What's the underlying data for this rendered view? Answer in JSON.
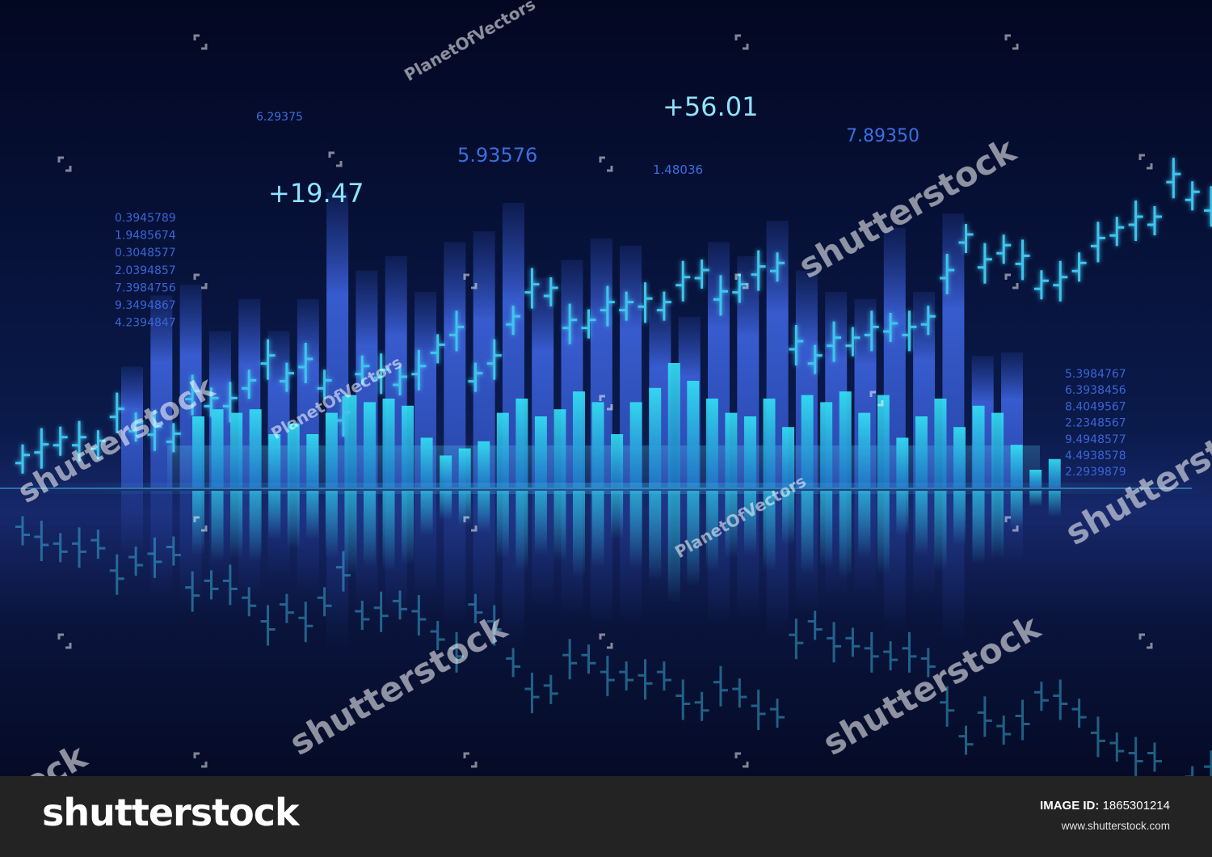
{
  "chart_data": {
    "type": "bar",
    "title": "",
    "xlabel": "",
    "ylabel": "",
    "grid": false,
    "legend": "none",
    "background_color": "#050a22",
    "series": [
      {
        "style": "tall-bars",
        "color": "#3a5fd6",
        "values": [
          34,
          54,
          57,
          44,
          53,
          44,
          53,
          83,
          61,
          65,
          55,
          69,
          72,
          80,
          59,
          64,
          70,
          68,
          52,
          48,
          69,
          65,
          75,
          61,
          55,
          53,
          73,
          55,
          77,
          37,
          38
        ]
      },
      {
        "style": "glow-bars",
        "color": "#2fd2ee",
        "values": [
          20,
          22,
          21,
          22,
          15,
          18,
          15,
          21,
          26,
          24,
          25,
          23,
          14,
          9,
          11,
          13,
          21,
          25,
          20,
          22,
          27,
          24,
          15,
          24,
          28,
          35,
          30,
          25,
          21,
          20,
          25,
          17,
          26,
          24,
          27,
          21,
          26,
          14,
          20,
          25,
          17,
          23,
          21,
          12,
          5,
          8
        ]
      },
      {
        "style": "ohlc",
        "color": "#40c4ee",
        "values": [
          8,
          11,
          13,
          13,
          12,
          21,
          17,
          16,
          14,
          26,
          24,
          24,
          29,
          36,
          31,
          35,
          29,
          20,
          33,
          32,
          30,
          33,
          39,
          44,
          31,
          36,
          47,
          56,
          55,
          46,
          46,
          51,
          51,
          52,
          51,
          58,
          60,
          54,
          56,
          61,
          62,
          40,
          36,
          41,
          41,
          44,
          45,
          44,
          47,
          60,
          70,
          63,
          67,
          64,
          57,
          58,
          62,
          69,
          72,
          75,
          75,
          87,
          82,
          79
        ]
      }
    ],
    "annotations": [
      "6.29375",
      "+19.47",
      "5.93576",
      "1.48036",
      "+56.01",
      "7.89350"
    ],
    "left_readout": [
      "0.3945789",
      "1.9485674",
      "0.3048577",
      "2.0394857",
      "7.3984756",
      "9.3494867",
      "4.2394847"
    ],
    "right_readout": [
      "5.3984767",
      "6.3938456",
      "8.4049567",
      "2.2348567",
      "9.4948577",
      "4.4938578",
      "2.2939879"
    ]
  },
  "watermark": {
    "brand": "shutterstock",
    "author": "PlanetOfVectors"
  },
  "footer": {
    "logo": "shutterstock",
    "image_id_label": "IMAGE ID:",
    "image_id": "1865301214",
    "site": "www.shutterstock.com"
  }
}
